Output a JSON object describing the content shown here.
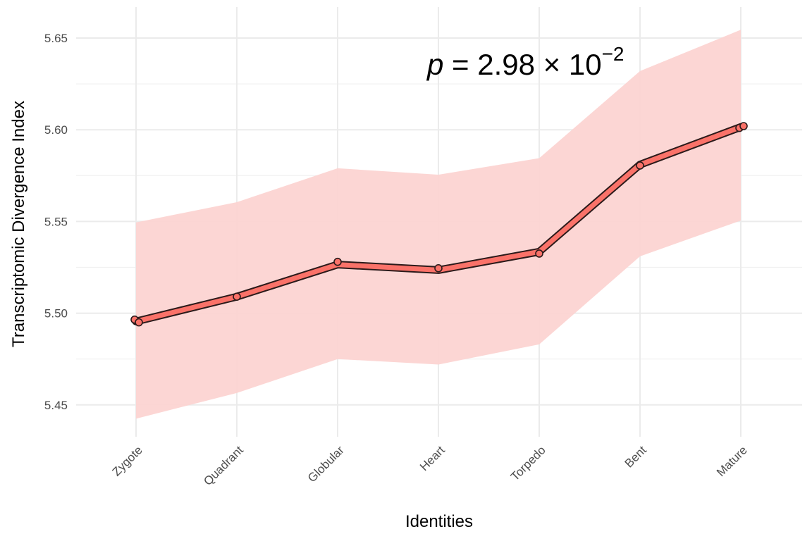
{
  "chart_data": {
    "type": "line",
    "xlabel": "Identities",
    "ylabel": "Transcriptomic Divergence Index",
    "categories": [
      "Zygote",
      "Quadrant",
      "Globular",
      "Heart",
      "Torpedo",
      "Bent",
      "Mature"
    ],
    "y_ticks": [
      "5.45",
      "5.50",
      "5.55",
      "5.60",
      "5.65"
    ],
    "ylim": [
      5.433,
      5.663
    ],
    "series": [
      {
        "values": [
          5.4955,
          5.509,
          5.5265,
          5.5235,
          5.5335,
          5.581,
          5.6015
        ],
        "lower": [
          5.4425,
          5.4565,
          5.475,
          5.472,
          5.483,
          5.531,
          5.5505
        ],
        "upper": [
          5.5495,
          5.5605,
          5.579,
          5.5755,
          5.5845,
          5.632,
          5.6545
        ],
        "points": [
          {
            "cat": 0,
            "y": 5.4965
          },
          {
            "cat": 0,
            "y": 5.495
          },
          {
            "cat": 1,
            "y": 5.509
          },
          {
            "cat": 2,
            "y": 5.528
          },
          {
            "cat": 3,
            "y": 5.5245
          },
          {
            "cat": 4,
            "y": 5.5325
          },
          {
            "cat": 5,
            "y": 5.5805
          },
          {
            "cat": 6,
            "y": 5.601
          },
          {
            "cat": 6,
            "y": 5.602
          }
        ],
        "line_color": "#fa7269",
        "ribbon_color": "#fcd4d2",
        "outline_color": "#2b1a1a"
      }
    ],
    "grid": true,
    "annotation": {
      "italic": "p",
      "text": " = 2.98 × 10",
      "exponent": "−2"
    }
  }
}
